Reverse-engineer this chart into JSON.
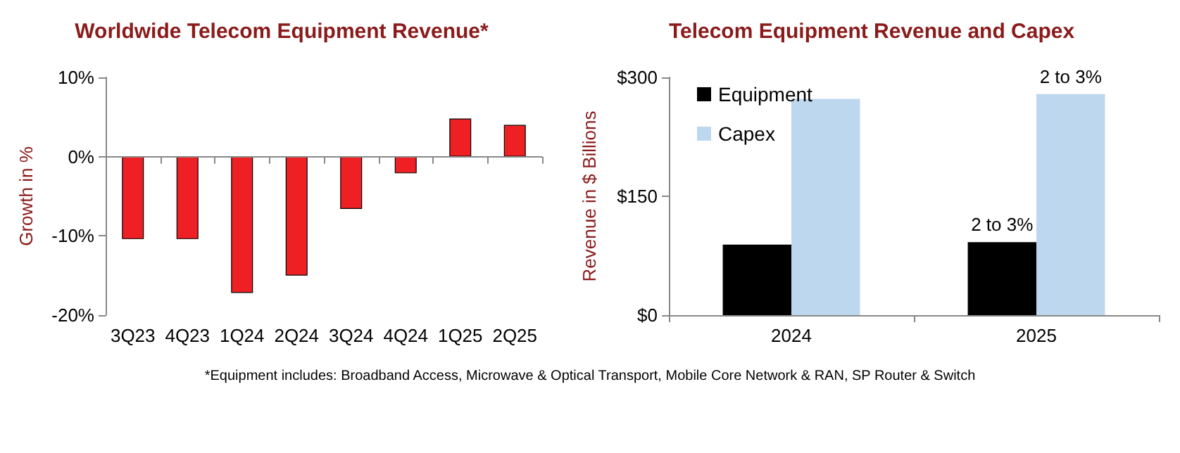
{
  "chart_data": [
    {
      "type": "bar",
      "title": "Worldwide Telecom Equipment Revenue*",
      "ylabel": "Growth in %",
      "categories": [
        "3Q23",
        "4Q23",
        "1Q24",
        "2Q24",
        "3Q24",
        "4Q24",
        "1Q25",
        "2Q25"
      ],
      "values": [
        -10.4,
        -10.4,
        -17.2,
        -15.0,
        -6.6,
        -2.1,
        4.8,
        4.0
      ],
      "color": "#ee2024",
      "ylim": [
        -20,
        10
      ],
      "yticks": [
        {
          "value": -20,
          "label": "-20%"
        },
        {
          "value": -10,
          "label": "-10%"
        },
        {
          "value": 0,
          "label": "0%"
        },
        {
          "value": 10,
          "label": "10%"
        }
      ],
      "grid": false,
      "legend": false,
      "ref_lines": [
        {
          "axis": "y",
          "value": 0,
          "color": "#888888"
        }
      ]
    },
    {
      "type": "bar",
      "title": "Telecom Equipment Revenue and Capex",
      "ylabel": "Revenue in $ Billions",
      "categories": [
        "2024",
        "2025"
      ],
      "series": [
        {
          "name": "Equipment",
          "color": "#000000",
          "values": [
            89,
            92
          ]
        },
        {
          "name": "Capex",
          "color": "#bdd7ee",
          "values": [
            273,
            279
          ]
        }
      ],
      "ylim": [
        0,
        300
      ],
      "yticks": [
        {
          "value": 0,
          "label": "$0"
        },
        {
          "value": 150,
          "label": "$150"
        },
        {
          "value": 300,
          "label": "$300"
        }
      ],
      "grid": false,
      "legend": "top left",
      "annotations": [
        {
          "text": "2 to 3%",
          "x": "2025",
          "y": 92
        },
        {
          "text": "2 to 3%",
          "x": "2025",
          "y": 279
        },
        "*Equipment includes: Broadband Access, Microwave & Optical Transport, Mobile Core Network & RAN, SP Router & Switch"
      ]
    }
  ]
}
